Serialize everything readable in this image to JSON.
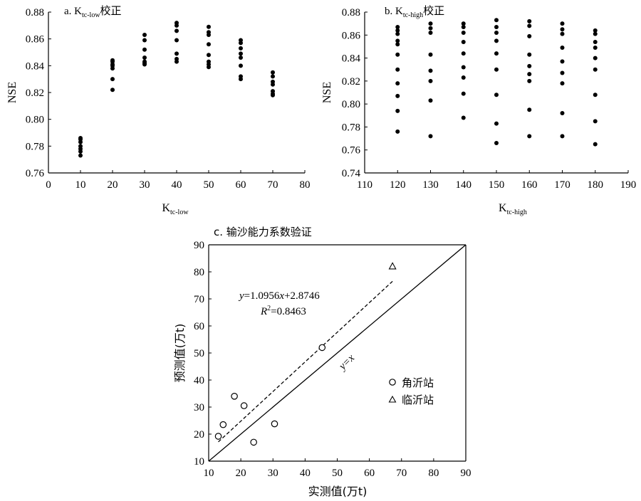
{
  "chart_data": [
    {
      "id": "a",
      "type": "scatter",
      "title_prefix": "a. K",
      "title_sub": "tc-low",
      "title_suffix": "校正",
      "xlabel_main": "K",
      "xlabel_sub": "tc-low",
      "ylabel": "NSE",
      "xlim": [
        0,
        80
      ],
      "ylim": [
        0.76,
        0.88
      ],
      "xticks": [
        0,
        10,
        20,
        30,
        40,
        50,
        60,
        70,
        80
      ],
      "yticks": [
        0.76,
        0.78,
        0.8,
        0.82,
        0.84,
        0.86,
        0.88
      ],
      "ytick_decimals": 2,
      "points": [
        [
          10,
          0.786
        ],
        [
          10,
          0.785
        ],
        [
          10,
          0.783
        ],
        [
          10,
          0.78
        ],
        [
          10,
          0.778
        ],
        [
          10,
          0.776
        ],
        [
          10,
          0.773
        ],
        [
          20,
          0.844
        ],
        [
          20,
          0.843
        ],
        [
          20,
          0.841
        ],
        [
          20,
          0.84
        ],
        [
          20,
          0.838
        ],
        [
          20,
          0.83
        ],
        [
          20,
          0.822
        ],
        [
          30,
          0.863
        ],
        [
          30,
          0.859
        ],
        [
          30,
          0.852
        ],
        [
          30,
          0.846
        ],
        [
          30,
          0.843
        ],
        [
          30,
          0.842
        ],
        [
          30,
          0.841
        ],
        [
          40,
          0.872
        ],
        [
          40,
          0.87
        ],
        [
          40,
          0.866
        ],
        [
          40,
          0.859
        ],
        [
          40,
          0.849
        ],
        [
          40,
          0.845
        ],
        [
          40,
          0.843
        ],
        [
          50,
          0.869
        ],
        [
          50,
          0.865
        ],
        [
          50,
          0.863
        ],
        [
          50,
          0.856
        ],
        [
          50,
          0.848
        ],
        [
          50,
          0.843
        ],
        [
          50,
          0.841
        ],
        [
          50,
          0.839
        ],
        [
          60,
          0.859
        ],
        [
          60,
          0.857
        ],
        [
          60,
          0.853
        ],
        [
          60,
          0.849
        ],
        [
          60,
          0.846
        ],
        [
          60,
          0.84
        ],
        [
          60,
          0.832
        ],
        [
          60,
          0.83
        ],
        [
          70,
          0.835
        ],
        [
          70,
          0.832
        ],
        [
          70,
          0.828
        ],
        [
          70,
          0.826
        ],
        [
          70,
          0.821
        ],
        [
          70,
          0.819
        ],
        [
          70,
          0.818
        ]
      ]
    },
    {
      "id": "b",
      "type": "scatter",
      "title_prefix": "b. K",
      "title_sub": "tc-high",
      "title_suffix": "校正",
      "xlabel_main": "K",
      "xlabel_sub": "tc-high",
      "ylabel": "NSE",
      "xlim": [
        110,
        190
      ],
      "ylim": [
        0.74,
        0.88
      ],
      "xticks": [
        110,
        120,
        130,
        140,
        150,
        160,
        170,
        180,
        190
      ],
      "yticks": [
        0.74,
        0.76,
        0.78,
        0.8,
        0.82,
        0.84,
        0.86,
        0.88
      ],
      "ytick_decimals": 2,
      "points": [
        [
          120,
          0.867
        ],
        [
          120,
          0.864
        ],
        [
          120,
          0.861
        ],
        [
          120,
          0.855
        ],
        [
          120,
          0.852
        ],
        [
          120,
          0.843
        ],
        [
          120,
          0.83
        ],
        [
          120,
          0.818
        ],
        [
          120,
          0.807
        ],
        [
          120,
          0.794
        ],
        [
          120,
          0.776
        ],
        [
          130,
          0.87
        ],
        [
          130,
          0.866
        ],
        [
          130,
          0.862
        ],
        [
          130,
          0.843
        ],
        [
          130,
          0.829
        ],
        [
          130,
          0.82
        ],
        [
          130,
          0.803
        ],
        [
          130,
          0.772
        ],
        [
          140,
          0.87
        ],
        [
          140,
          0.867
        ],
        [
          140,
          0.862
        ],
        [
          140,
          0.854
        ],
        [
          140,
          0.844
        ],
        [
          140,
          0.832
        ],
        [
          140,
          0.823
        ],
        [
          140,
          0.809
        ],
        [
          140,
          0.788
        ],
        [
          150,
          0.873
        ],
        [
          150,
          0.867
        ],
        [
          150,
          0.862
        ],
        [
          150,
          0.855
        ],
        [
          150,
          0.844
        ],
        [
          150,
          0.83
        ],
        [
          150,
          0.808
        ],
        [
          150,
          0.783
        ],
        [
          150,
          0.766
        ],
        [
          160,
          0.872
        ],
        [
          160,
          0.868
        ],
        [
          160,
          0.859
        ],
        [
          160,
          0.843
        ],
        [
          160,
          0.833
        ],
        [
          160,
          0.826
        ],
        [
          160,
          0.82
        ],
        [
          160,
          0.795
        ],
        [
          160,
          0.772
        ],
        [
          170,
          0.87
        ],
        [
          170,
          0.865
        ],
        [
          170,
          0.861
        ],
        [
          170,
          0.849
        ],
        [
          170,
          0.837
        ],
        [
          170,
          0.827
        ],
        [
          170,
          0.818
        ],
        [
          170,
          0.792
        ],
        [
          170,
          0.772
        ],
        [
          180,
          0.864
        ],
        [
          180,
          0.861
        ],
        [
          180,
          0.854
        ],
        [
          180,
          0.849
        ],
        [
          180,
          0.84
        ],
        [
          180,
          0.83
        ],
        [
          180,
          0.808
        ],
        [
          180,
          0.785
        ],
        [
          180,
          0.765
        ]
      ]
    },
    {
      "id": "c",
      "type": "scatter",
      "title": "c. 输沙能力系数验证",
      "xlabel": "实测值(万t)",
      "ylabel": "预测值(万t)",
      "xlim": [
        10,
        90
      ],
      "ylim": [
        10,
        90
      ],
      "xticks": [
        10,
        20,
        30,
        40,
        50,
        60,
        70,
        80,
        90
      ],
      "yticks": [
        10,
        20,
        30,
        40,
        50,
        60,
        70,
        80,
        90
      ],
      "ytick_decimals": 0,
      "series": [
        {
          "name": "角沂站",
          "marker": "circle",
          "points": [
            [
              13,
              19.2
            ],
            [
              14.5,
              23.5
            ],
            [
              18,
              34
            ],
            [
              21,
              30.5
            ],
            [
              24,
              17
            ],
            [
              30.5,
              23.8
            ],
            [
              45.3,
              52
            ]
          ]
        },
        {
          "name": "临沂站",
          "marker": "triangle",
          "points": [
            [
              67.2,
              82
            ]
          ]
        }
      ],
      "fit_line": {
        "slope": 1.0956,
        "intercept": 2.8746,
        "x_range": [
          13,
          67.2
        ]
      },
      "identity_label": "y=x",
      "equation_y": "y",
      "equation_rest": "=1.0956",
      "equation_x": "x",
      "equation_tail": "+2.8746",
      "r2_prefix": "R",
      "r2_sup": "2",
      "r2_value": "=0.8463"
    }
  ]
}
